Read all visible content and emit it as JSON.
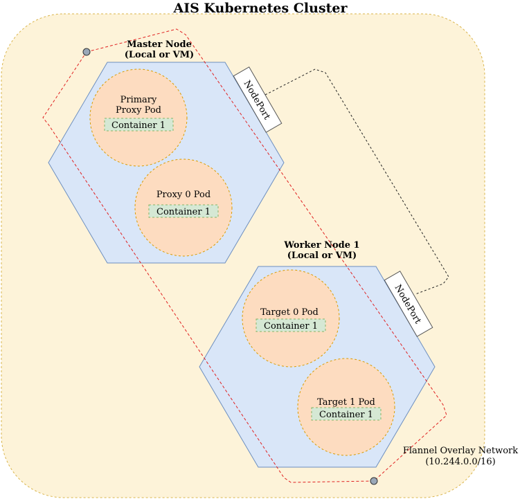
{
  "title": "AIS Kubernetes Cluster",
  "master_node": {
    "title_line1": "Master Node",
    "title_line2": "(Local or VM)",
    "nodeport_label": "NodePort",
    "pods": [
      {
        "label_line1": "Primary",
        "label_line2": "Proxy Pod",
        "container": "Container 1"
      },
      {
        "label_line1": "Proxy 0 Pod",
        "label_line2": "",
        "container": "Container 1"
      }
    ]
  },
  "worker_node": {
    "title_line1": "Worker Node 1",
    "title_line2": "(Local or VM)",
    "nodeport_label": "NodePort",
    "pods": [
      {
        "label_line1": "Target 0 Pod",
        "label_line2": "",
        "container": "Container 1"
      },
      {
        "label_line1": "Target 1 Pod",
        "label_line2": "",
        "container": "Container 1"
      }
    ]
  },
  "network": {
    "label_line1": "Flannel Overlay Network",
    "label_line2": "(10.244.0.0/16)"
  },
  "colors": {
    "cluster_fill": "#fdf3d9",
    "cluster_stroke": "#d9b44a",
    "node_fill": "#d9e6f8",
    "node_stroke": "#6c8ebf",
    "pod_fill": "#fddcc0",
    "pod_stroke": "#d79b00",
    "container_fill": "#d5e8d4",
    "container_stroke": "#82b366",
    "network_line": "#e02020",
    "endpoint_fill": "#9aa8b8"
  }
}
